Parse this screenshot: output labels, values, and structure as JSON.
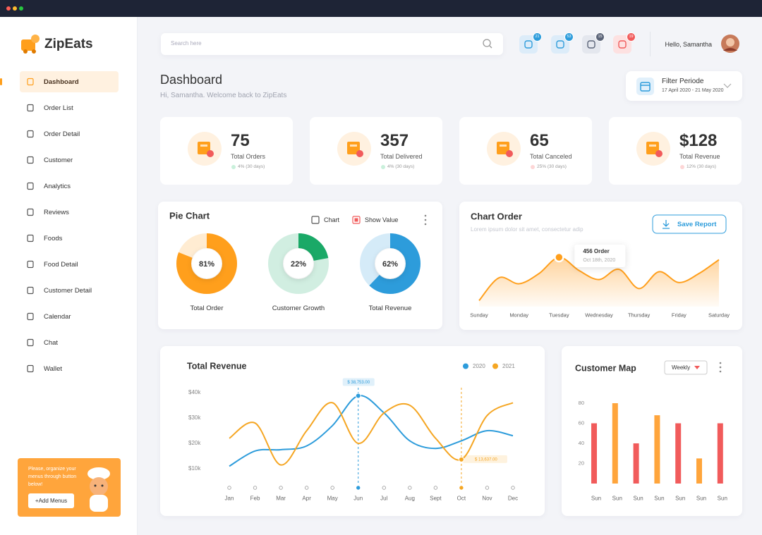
{
  "brand": "ZipEats",
  "nav": [
    "Dashboard",
    "Order List",
    "Order Detail",
    "Customer",
    "Analytics",
    "Reviews",
    "Foods",
    "Food Detail",
    "Customer Detail",
    "Calendar",
    "Chat",
    "Wallet"
  ],
  "active_nav": 0,
  "promo": {
    "text": "Please, organize your menus through button below!",
    "button": "+Add Menus"
  },
  "search_placeholder": "Search here",
  "badges": [
    21,
    53,
    15,
    19
  ],
  "greeting": "Hello, Samantha",
  "header": {
    "title": "Dashboard",
    "subtitle": "Hi, Samantha. Welcome back to ZipEats"
  },
  "filter": {
    "label": "Filter Periode",
    "range": "17 April 2020 - 21 May 2020"
  },
  "stats": [
    {
      "value": "75",
      "label": "Total Orders",
      "change": "4% (30 days)",
      "trend": "up"
    },
    {
      "value": "357",
      "label": "Total Delivered",
      "change": "4% (30 days)",
      "trend": "up"
    },
    {
      "value": "65",
      "label": "Total Canceled",
      "change": "25% (30 days)",
      "trend": "down"
    },
    {
      "value": "$128",
      "label": "Total Revenue",
      "change": "12% (30 days)",
      "trend": "down"
    }
  ],
  "chart_data": [
    {
      "type": "donut",
      "title": "Pie Chart",
      "options": [
        "Chart",
        "Show Value"
      ],
      "categories": [
        "Total Order",
        "Customer Growth",
        "Total Revenue"
      ],
      "values": [
        81,
        22,
        62
      ],
      "value_labels": [
        "81%",
        "22%",
        "62%"
      ],
      "colors": [
        "#ff9f1c",
        "#1aa967",
        "#2d9cdb"
      ]
    },
    {
      "type": "area",
      "title": "Chart Order",
      "subtitle": "Lorem ipsum dolor sit amet, consectetur adip",
      "button": "Save Report",
      "x": [
        0,
        0.5,
        1,
        1.5,
        2,
        2.5,
        3,
        3.5,
        4,
        4.5,
        5,
        5.5,
        6
      ],
      "values": [
        10,
        48,
        38,
        55,
        82,
        60,
        45,
        62,
        30,
        58,
        40,
        55,
        78
      ],
      "xlim": [
        0,
        6
      ],
      "xticks": [
        {
          "value": 0,
          "label": "Sunday"
        },
        {
          "value": 1,
          "label": "Monday"
        },
        {
          "value": 2,
          "label": "Tuesday"
        },
        {
          "value": 3,
          "label": "Wednesday"
        },
        {
          "value": 4,
          "label": "Thursday"
        },
        {
          "value": 5,
          "label": "Friday"
        },
        {
          "value": 6,
          "label": "Saturday"
        }
      ],
      "color": "#ff9f1c",
      "highlight": {
        "x": 2,
        "label": "456 Order",
        "date": "Oct 18th, 2020"
      }
    },
    {
      "type": "line",
      "title": "Total Revenue",
      "categories": [
        "Jan",
        "Feb",
        "Mar",
        "Apr",
        "May",
        "Jun",
        "Jul",
        "Aug",
        "Sept",
        "Oct",
        "Nov",
        "Dec"
      ],
      "series": [
        {
          "name": "2020",
          "color": "#2d9cdb",
          "values": [
            11000,
            17000,
            17500,
            19000,
            27000,
            38753,
            32000,
            21000,
            18000,
            21000,
            25000,
            23000
          ],
          "value_labels": [
            null,
            null,
            null,
            null,
            null,
            "$ 38,753.00",
            null,
            null,
            null,
            null,
            null,
            null
          ]
        },
        {
          "name": "2021",
          "color": "#f5a623",
          "values": [
            22000,
            28000,
            11500,
            25000,
            36000,
            20000,
            32000,
            35000,
            22000,
            13637,
            31000,
            36000
          ],
          "value_labels": [
            null,
            null,
            null,
            null,
            null,
            null,
            null,
            null,
            null,
            "$ 13,637.00",
            null,
            null
          ]
        }
      ],
      "ylim": [
        5000,
        45000
      ],
      "yticks": [
        {
          "value": 10000,
          "label": "$10k"
        },
        {
          "value": 20000,
          "label": "$20k"
        },
        {
          "value": 30000,
          "label": "$30k"
        },
        {
          "value": 40000,
          "label": "$40k"
        }
      ],
      "grid": false
    },
    {
      "type": "bar",
      "title": "Customer Map",
      "dropdown": "Weekly",
      "categories": [
        "Sun",
        "Sun",
        "Sun",
        "Sun",
        "Sun",
        "Sun",
        "Sun"
      ],
      "values": [
        60,
        80,
        40,
        68,
        60,
        25,
        60
      ],
      "colors": [
        "#f15b5b",
        "#ffa53c",
        "#f15b5b",
        "#ffa53c",
        "#f15b5b",
        "#ffa53c",
        "#f15b5b"
      ],
      "ylim": [
        0,
        85
      ],
      "yticks": [
        20,
        40,
        60,
        80
      ]
    }
  ]
}
